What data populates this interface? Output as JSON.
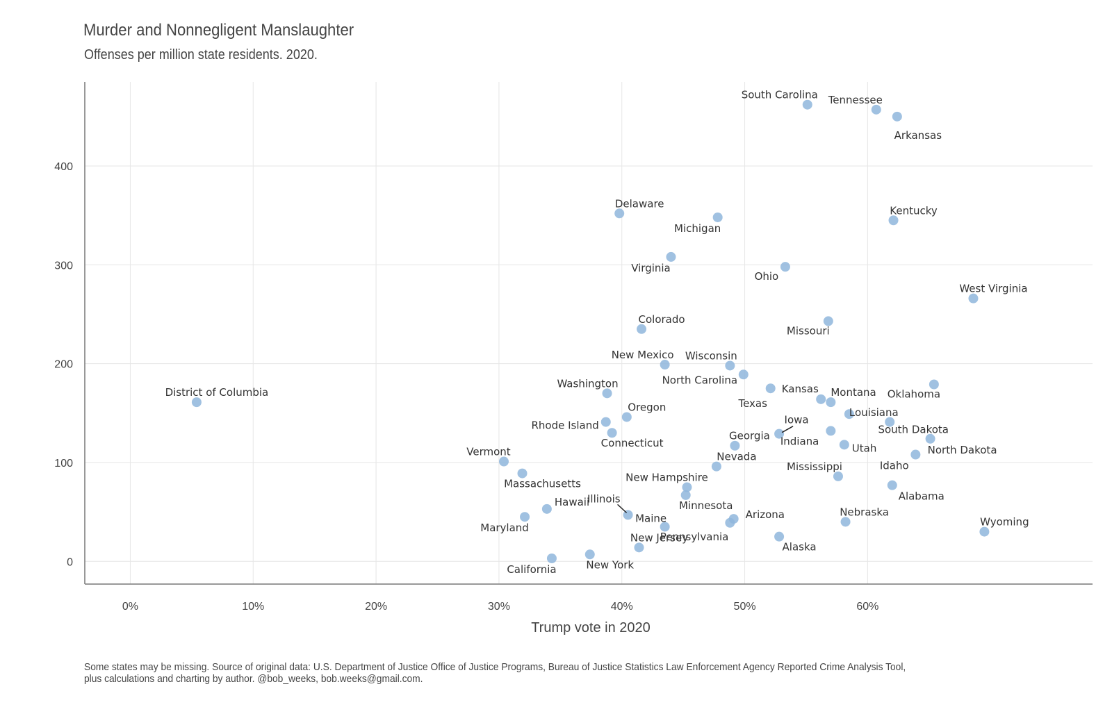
{
  "chart_data": {
    "type": "scatter",
    "title": "Murder and Nonnegligent Manslaughter",
    "subtitle": "Offenses per million state residents. 2020.",
    "xlabel": "Trump vote in 2020",
    "ylabel": "",
    "footnote": [
      "Some states may be missing. Source of original data: U.S. Department of Justice Office of Justice Programs, Bureau of Justice Statistics Law Enforcement Agency Reported Crime Analysis Tool,",
      "plus calculations and charting by author. @bob_weeks, bob.weeks@gmail.com."
    ],
    "xlim": [
      -3.7,
      78.3
    ],
    "ylim": [
      -23,
      485
    ],
    "xticks": [
      0,
      10,
      20,
      30,
      40,
      50,
      60
    ],
    "xtick_labels": [
      "0%",
      "10%",
      "20%",
      "30%",
      "40%",
      "50%",
      "60%"
    ],
    "yticks": [
      0,
      100,
      200,
      300,
      400
    ],
    "ytick_labels": [
      "0",
      "100",
      "200",
      "300",
      "400"
    ],
    "grid": true,
    "point_color": "#8fb6dc",
    "points": [
      {
        "label": "South Carolina",
        "x": 55.1,
        "y": 462,
        "dx": -40,
        "dy": -9,
        "anchor": "middle"
      },
      {
        "label": "Tennessee",
        "x": 60.7,
        "y": 457,
        "dx": -30,
        "dy": -9,
        "anchor": "middle"
      },
      {
        "label": "Arkansas",
        "x": 62.4,
        "y": 450,
        "dx": 30,
        "dy": 32,
        "anchor": "middle"
      },
      {
        "label": "Delaware",
        "x": 39.8,
        "y": 352,
        "dx": 29,
        "dy": -9,
        "anchor": "middle"
      },
      {
        "label": "Michigan",
        "x": 47.8,
        "y": 348,
        "dx": -29,
        "dy": 21,
        "anchor": "middle"
      },
      {
        "label": "Kentucky",
        "x": 62.1,
        "y": 345,
        "dx": 29,
        "dy": -9,
        "anchor": "middle"
      },
      {
        "label": "Virginia",
        "x": 44.0,
        "y": 308,
        "dx": -29,
        "dy": 21,
        "anchor": "middle"
      },
      {
        "label": "Ohio",
        "x": 53.3,
        "y": 298,
        "dx": -27,
        "dy": 19,
        "anchor": "middle"
      },
      {
        "label": "West Virginia",
        "x": 68.6,
        "y": 266,
        "dx": 29,
        "dy": -9,
        "anchor": "middle"
      },
      {
        "label": "Missouri",
        "x": 56.8,
        "y": 243,
        "dx": -29,
        "dy": 19,
        "anchor": "middle"
      },
      {
        "label": "Colorado",
        "x": 41.6,
        "y": 235,
        "dx": 29,
        "dy": -9,
        "anchor": "middle"
      },
      {
        "label": "New Mexico",
        "x": 43.5,
        "y": 199,
        "dx": -32,
        "dy": -9,
        "anchor": "middle"
      },
      {
        "label": "Wisconsin",
        "x": 48.8,
        "y": 198,
        "dx": -27,
        "dy": -9,
        "anchor": "middle"
      },
      {
        "label": "North Carolina",
        "x": 49.9,
        "y": 189,
        "dx": -63,
        "dy": 13,
        "anchor": "middle"
      },
      {
        "label": "Oklahoma",
        "x": 65.4,
        "y": 179,
        "dx": -29,
        "dy": 19,
        "anchor": "middle"
      },
      {
        "label": "Kansas",
        "x": 52.1,
        "y": 175,
        "dx": 16,
        "dy": 6,
        "anchor": "start"
      },
      {
        "label": "Washington",
        "x": 38.8,
        "y": 170,
        "dx": -28,
        "dy": -9,
        "anchor": "middle"
      },
      {
        "label": "Texas",
        "x": 56.2,
        "y": 164,
        "dx": -98,
        "dy": 11,
        "anchor": "middle"
      },
      {
        "label": "Montana",
        "x": 57.0,
        "y": 161,
        "dx": 0,
        "dy": -9,
        "anchor": "start"
      },
      {
        "label": "District of Columbia",
        "x": 5.4,
        "y": 161,
        "dx": 29,
        "dy": -9,
        "anchor": "middle"
      },
      {
        "label": "Louisiana",
        "x": 58.5,
        "y": 149,
        "dx": 0,
        "dy": 3,
        "anchor": "start"
      },
      {
        "label": "Oregon",
        "x": 40.4,
        "y": 146,
        "dx": 29,
        "dy": -9,
        "anchor": "middle"
      },
      {
        "label": "Rhode Island",
        "x": 38.7,
        "y": 141,
        "dx": -10,
        "dy": 10,
        "anchor": "end"
      },
      {
        "label": "South Dakota",
        "x": 61.8,
        "y": 141,
        "dx": 34,
        "dy": 16,
        "anchor": "middle"
      },
      {
        "label": "Iowa",
        "x": 52.8,
        "y": 129,
        "dx": 25,
        "dy": -15,
        "anchor": "middle",
        "lx1": 4,
        "ly1": -2,
        "lx2": 20,
        "ly2": -11
      },
      {
        "label": "Connecticut",
        "x": 39.2,
        "y": 130,
        "dx": 29,
        "dy": 20,
        "anchor": "middle"
      },
      {
        "label": "Indiana",
        "x": 57.0,
        "y": 132,
        "dx": -17,
        "dy": 20,
        "anchor": "end"
      },
      {
        "label": "North Dakota",
        "x": 65.1,
        "y": 124,
        "dx": 46,
        "dy": 21,
        "anchor": "middle"
      },
      {
        "label": "Georgia",
        "x": 49.2,
        "y": 117,
        "dx": 21,
        "dy": -9,
        "anchor": "middle"
      },
      {
        "label": "Utah",
        "x": 58.1,
        "y": 118,
        "dx": 11,
        "dy": 10,
        "anchor": "start"
      },
      {
        "label": "North Dakota_point",
        "x": 63.9,
        "y": 108,
        "dx": 0,
        "dy": 0,
        "anchor": "middle",
        "nolabel": true
      },
      {
        "label": "Vermont",
        "x": 30.4,
        "y": 101,
        "dx": -22,
        "dy": -9,
        "anchor": "middle"
      },
      {
        "label": "Nevada",
        "x": 47.7,
        "y": 96,
        "dx": 29,
        "dy": -9,
        "anchor": "middle"
      },
      {
        "label": "Massachusetts",
        "x": 31.9,
        "y": 89,
        "dx": 29,
        "dy": 20,
        "anchor": "middle"
      },
      {
        "label": "Mississippi",
        "x": 57.6,
        "y": 86,
        "dx": -34,
        "dy": -9,
        "anchor": "middle"
      },
      {
        "label": "Idaho",
        "x": 62.0,
        "y": 77,
        "dx": 3,
        "dy": -23,
        "anchor": "middle"
      },
      {
        "label": "New Hampshire",
        "x": 45.3,
        "y": 75,
        "dx": -29,
        "dy": -9,
        "anchor": "middle"
      },
      {
        "label": "Alabama",
        "x": 62.0,
        "y": 77,
        "dx": 42,
        "dy": 21,
        "anchor": "middle",
        "hidepoint": true
      },
      {
        "label": "Minnesota",
        "x": 45.2,
        "y": 67,
        "dx": 29,
        "dy": 20,
        "anchor": "middle"
      },
      {
        "label": "Hawaii",
        "x": 33.9,
        "y": 53,
        "dx": 11,
        "dy": -5,
        "anchor": "start"
      },
      {
        "label": "Illinois",
        "x": 40.5,
        "y": 47,
        "dx": -11,
        "dy": -18,
        "anchor": "end",
        "lx1": -2,
        "ly1": -3,
        "lx2": -15,
        "ly2": -15
      },
      {
        "label": "Maine",
        "x": 43.5,
        "y": 35,
        "dx": -20,
        "dy": -7,
        "anchor": "middle"
      },
      {
        "label": "Arizona",
        "x": 49.1,
        "y": 43,
        "dx": 17,
        "dy": -1,
        "anchor": "start"
      },
      {
        "label": "Maryland",
        "x": 32.1,
        "y": 45,
        "dx": -29,
        "dy": 21,
        "anchor": "middle"
      },
      {
        "label": "Nebraska",
        "x": 58.2,
        "y": 40,
        "dx": 27,
        "dy": -9,
        "anchor": "middle"
      },
      {
        "label": "Pennsylvania",
        "x": 48.8,
        "y": 39,
        "dx": -2,
        "dy": 25,
        "anchor": "end"
      },
      {
        "label": "Wyoming",
        "x": 69.5,
        "y": 30,
        "dx": 29,
        "dy": -9,
        "anchor": "middle"
      },
      {
        "label": "Alaska",
        "x": 52.8,
        "y": 25,
        "dx": 29,
        "dy": 20,
        "anchor": "middle"
      },
      {
        "label": "New Jersey",
        "x": 41.4,
        "y": 14,
        "dx": 29,
        "dy": -9,
        "anchor": "middle"
      },
      {
        "label": "New York",
        "x": 37.4,
        "y": 7,
        "dx": 29,
        "dy": 20,
        "anchor": "middle"
      },
      {
        "label": "California",
        "x": 34.3,
        "y": 3,
        "dx": -29,
        "dy": 21,
        "anchor": "middle"
      }
    ]
  }
}
